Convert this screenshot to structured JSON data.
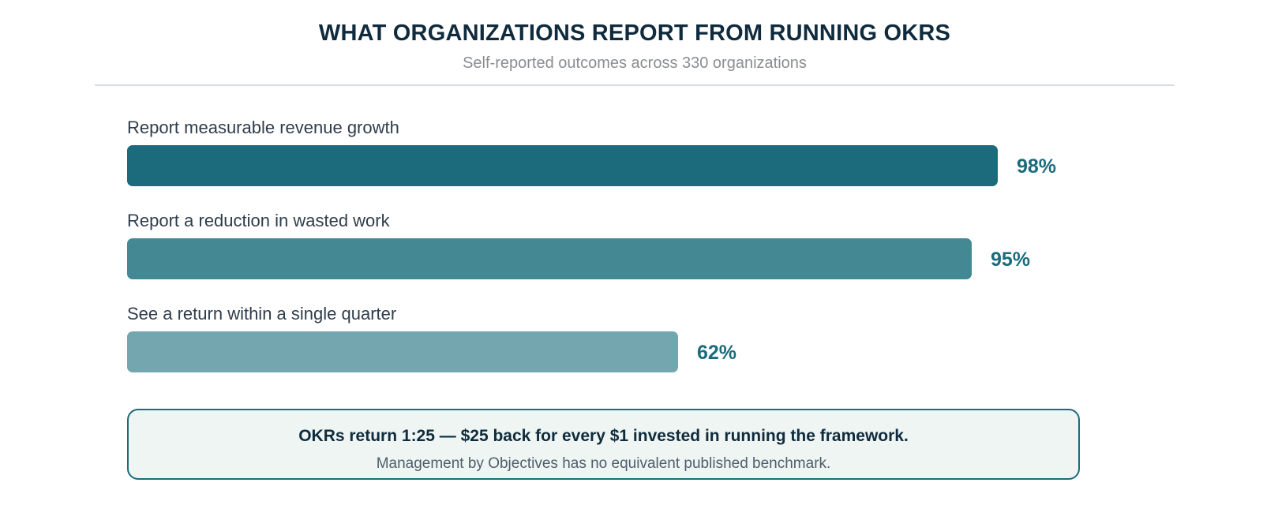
{
  "header": {
    "title": "WHAT ORGANIZATIONS REPORT FROM RUNNING OKRS",
    "subtitle": "Self-reported outcomes across 330 organizations"
  },
  "chart_data": {
    "type": "bar",
    "orientation": "horizontal",
    "title": "WHAT ORGANIZATIONS REPORT FROM RUNNING OKRS",
    "subtitle": "Self-reported outcomes across 330 organizations",
    "categories": [
      "Report measurable revenue growth",
      "Report a reduction in wasted work",
      "See a return within a single quarter"
    ],
    "values": [
      98,
      95,
      62
    ],
    "value_labels": [
      "98%",
      "95%",
      "62%"
    ],
    "xlim": [
      0,
      100
    ],
    "grid": false,
    "bar_colors": [
      "#1b6b7d",
      "#438893",
      "#74a6af"
    ],
    "value_label_color": "#1b6b7d"
  },
  "callout": {
    "main": "OKRs return 1:25 — $25 back for every $1 invested in running the framework.",
    "sub": "Management by Objectives has no equivalent published benchmark."
  },
  "colors": {
    "title": "#0f2b3d",
    "subtitle": "#8a8d90",
    "accent": "#1b6b7d",
    "callout_bg": "#eef5f3"
  }
}
